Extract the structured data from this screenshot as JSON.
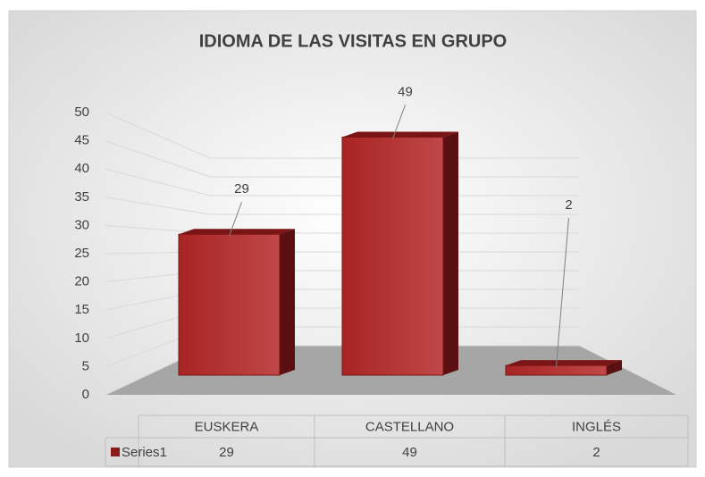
{
  "chart_data": {
    "type": "bar3d",
    "title": "IDIOMA DE LAS VISITAS EN GRUPO",
    "categories": [
      "EUSKERA",
      "CASTELLANO",
      "INGLÉS"
    ],
    "series": [
      {
        "name": "Series1",
        "color": "#8b1a1a",
        "values": [
          29,
          49,
          2
        ]
      }
    ],
    "ylim": [
      0,
      50
    ],
    "yticks": [
      0,
      5,
      10,
      15,
      20,
      25,
      30,
      35,
      40,
      45,
      50
    ],
    "grid": true
  }
}
